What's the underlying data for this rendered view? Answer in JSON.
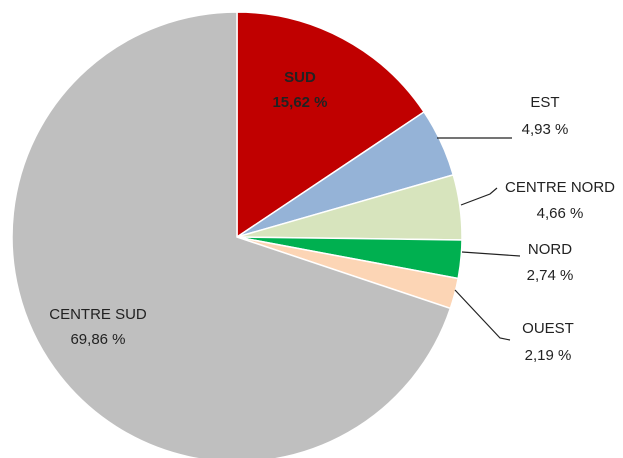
{
  "chart_data": {
    "type": "pie",
    "categories": [
      "SUD",
      "EST",
      "CENTRE NORD",
      "NORD",
      "OUEST",
      "CENTRE SUD"
    ],
    "values": [
      15.62,
      4.93,
      4.66,
      2.74,
      2.19,
      69.86
    ],
    "value_labels": [
      "15,62 %",
      "4,93 %",
      "4,66 %",
      "2,74 %",
      "2,19 %",
      "69,86 %"
    ],
    "colors": [
      "#c00000",
      "#95b3d7",
      "#d7e4bd",
      "#00b050",
      "#fcd5b5",
      "#bfbfbf"
    ]
  }
}
